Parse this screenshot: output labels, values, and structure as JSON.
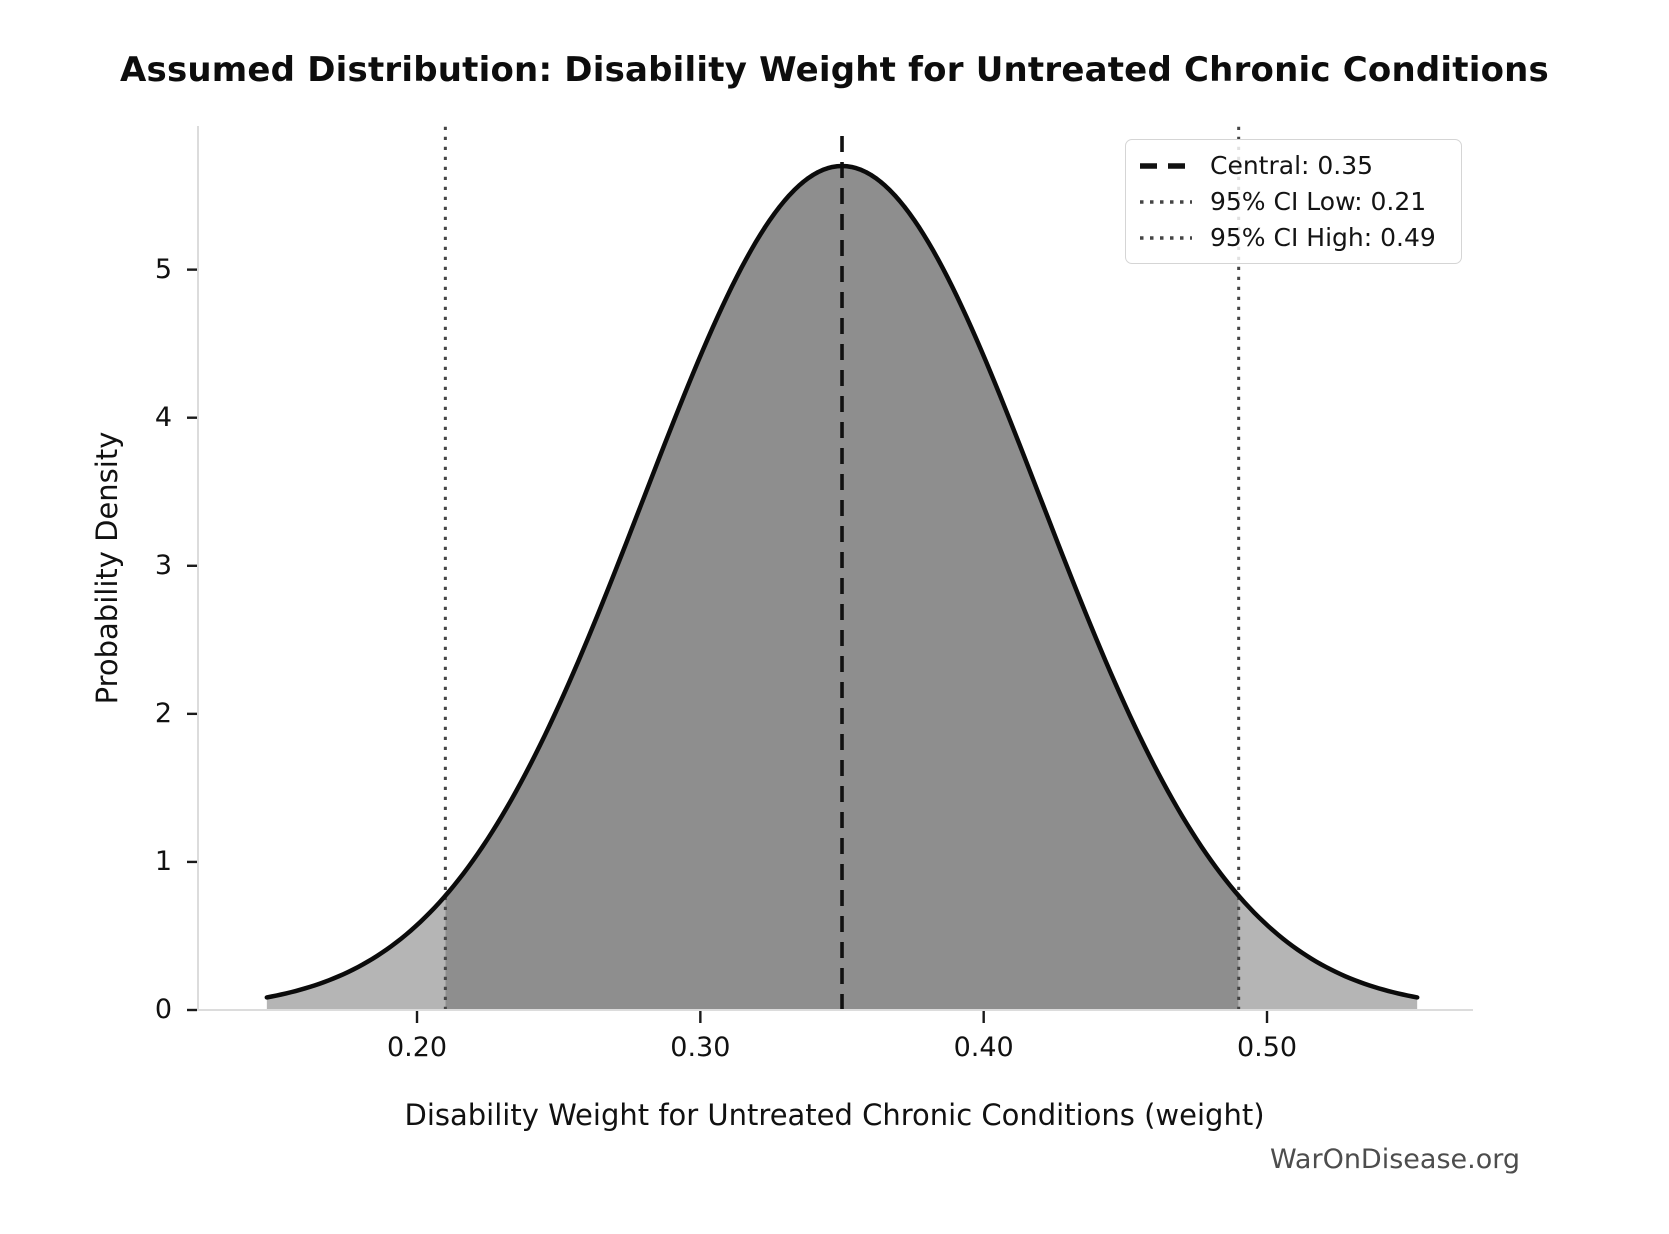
{
  "title": "Assumed Distribution: Disability Weight for Untreated Chronic Conditions",
  "watermark": "WarOnDisease.org",
  "chart_data": {
    "type": "area",
    "subtype": "probability-density-normal",
    "title": "Assumed Distribution: Disability Weight for Untreated Chronic Conditions",
    "xlabel": "Disability Weight for Untreated Chronic Conditions (weight)",
    "ylabel": "Probability Density",
    "central": 0.35,
    "ci_low": 0.21,
    "ci_high": 0.49,
    "mean": 0.35,
    "sd": 0.07,
    "peak_density": 5.7,
    "curve_domain": [
      0.147,
      0.553
    ],
    "xlim": [
      0.1227,
      0.5727
    ],
    "ylim": [
      0,
      5.97
    ],
    "x_ticks": [
      "0.20",
      "0.30",
      "0.40",
      "0.50"
    ],
    "x_tick_values": [
      0.2,
      0.3,
      0.4,
      0.5
    ],
    "y_ticks": [
      "0",
      "1",
      "2",
      "3",
      "4",
      "5"
    ],
    "y_tick_values": [
      0,
      1,
      2,
      3,
      4,
      5
    ],
    "grid": false,
    "legend": {
      "position": "upper right",
      "entries": [
        {
          "label": "Central: 0.35",
          "style": "dashed",
          "color": "#111111"
        },
        {
          "label": "95% CI Low: 0.21",
          "style": "dotted",
          "color": "#454545"
        },
        {
          "label": "95% CI High: 0.49",
          "style": "dotted",
          "color": "#454545"
        }
      ]
    },
    "colors": {
      "curve": "#0b0b0b",
      "fill_tails": "#b5b5b5",
      "fill_ci_region": "#8e8e8e",
      "central_line": "#111111",
      "ci_lines": "#454545",
      "spines": "#dcdcdc",
      "watermark_text": "#4d4d4d"
    }
  }
}
